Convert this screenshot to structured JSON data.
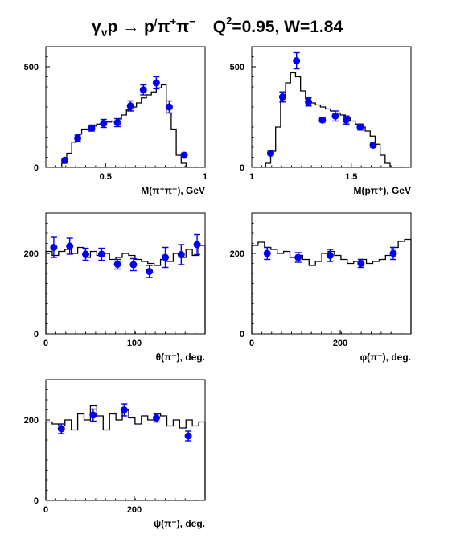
{
  "title": {
    "reaction": "γ",
    "reaction_sub": "v",
    "reaction_rest": "p → p",
    "prime": "/",
    "pi_plus": "π",
    "plus_sup": "+",
    "pi_minus": "π",
    "minus_sup": "−",
    "q2": "Q",
    "q2_sup": "2",
    "q2_rest": "=0.95, W=1.84"
  },
  "colors": {
    "data_points": "#0000ee",
    "histogram": "#000000",
    "frame": "#000000"
  },
  "chart_data": [
    {
      "type": "line",
      "xlabel": "M(π⁺π⁻), GeV",
      "xlim": [
        0.2,
        1.0
      ],
      "ylim": [
        0,
        600
      ],
      "xticks": [
        0.5,
        1
      ],
      "xtick_labels": [
        "0.5",
        "1"
      ],
      "yticks": [
        0,
        500
      ],
      "ytick_labels": [
        "0",
        "500"
      ],
      "series": [
        {
          "kind": "histogram",
          "edges": [
            0.28,
            0.305,
            0.33,
            0.355,
            0.38,
            0.405,
            0.43,
            0.455,
            0.48,
            0.505,
            0.53,
            0.555,
            0.58,
            0.605,
            0.63,
            0.655,
            0.68,
            0.705,
            0.73,
            0.755,
            0.78,
            0.805,
            0.83,
            0.855,
            0.88,
            0.905
          ],
          "values": [
            20,
            70,
            125,
            165,
            190,
            190,
            205,
            215,
            225,
            225,
            230,
            240,
            260,
            285,
            300,
            320,
            345,
            360,
            375,
            395,
            410,
            270,
            190,
            60,
            20
          ]
        },
        {
          "kind": "points",
          "x": [
            0.295,
            0.36,
            0.43,
            0.49,
            0.56,
            0.625,
            0.69,
            0.755,
            0.82,
            0.895
          ],
          "y": [
            35,
            145,
            195,
            218,
            222,
            305,
            385,
            420,
            300,
            60
          ],
          "yerr": [
            10,
            15,
            15,
            20,
            20,
            25,
            25,
            30,
            30,
            10
          ]
        }
      ]
    },
    {
      "type": "line",
      "xlabel": "M(pπ⁺), GeV",
      "xlim": [
        1.0,
        1.8
      ],
      "ylim": [
        0,
        600
      ],
      "xticks": [
        1,
        1.5
      ],
      "xtick_labels": [
        "1",
        "1.5"
      ],
      "yticks": [
        0,
        500
      ],
      "ytick_labels": [
        "0",
        "500"
      ],
      "series": [
        {
          "kind": "histogram",
          "edges": [
            1.07,
            1.095,
            1.12,
            1.145,
            1.17,
            1.195,
            1.22,
            1.245,
            1.27,
            1.295,
            1.32,
            1.345,
            1.37,
            1.395,
            1.42,
            1.445,
            1.47,
            1.495,
            1.52,
            1.545,
            1.57,
            1.595,
            1.62,
            1.645,
            1.67,
            1.695
          ],
          "values": [
            20,
            80,
            200,
            350,
            420,
            470,
            450,
            380,
            340,
            320,
            310,
            300,
            290,
            280,
            270,
            260,
            245,
            230,
            215,
            200,
            180,
            155,
            115,
            60,
            20
          ]
        },
        {
          "kind": "points",
          "x": [
            1.095,
            1.155,
            1.225,
            1.285,
            1.355,
            1.42,
            1.475,
            1.545,
            1.61
          ],
          "y": [
            70,
            350,
            530,
            325,
            235,
            255,
            235,
            200,
            110
          ],
          "yerr": [
            10,
            25,
            40,
            20,
            10,
            25,
            20,
            15,
            10
          ]
        }
      ]
    },
    {
      "type": "line",
      "xlabel": "θ(π⁻), deg.",
      "xlim": [
        0,
        180
      ],
      "ylim": [
        0,
        300
      ],
      "xticks": [
        0,
        100
      ],
      "xtick_labels": [
        "0",
        "100"
      ],
      "yticks": [
        0,
        200
      ],
      "ytick_labels": [
        "0",
        "200"
      ],
      "series": [
        {
          "kind": "histogram",
          "edges": [
            0,
            7.2,
            14.4,
            21.6,
            28.8,
            36,
            43.2,
            50.4,
            57.6,
            64.8,
            72,
            79.2,
            86.4,
            93.6,
            100.8,
            108,
            115.2,
            122.4,
            129.6,
            136.8,
            144,
            151.2,
            158.4,
            165.6,
            172.8,
            180
          ],
          "values": [
            205,
            195,
            205,
            210,
            200,
            215,
            190,
            205,
            195,
            200,
            185,
            190,
            200,
            195,
            185,
            180,
            175,
            170,
            185,
            180,
            200,
            190,
            210,
            195,
            220
          ]
        },
        {
          "kind": "points",
          "x": [
            9,
            27,
            45,
            63,
            81,
            99,
            117,
            135,
            153,
            171
          ],
          "y": [
            215,
            218,
            198,
            198,
            173,
            172,
            155,
            190,
            197,
            222
          ],
          "yerr": [
            25,
            20,
            15,
            15,
            12,
            15,
            15,
            25,
            25,
            25
          ]
        }
      ]
    },
    {
      "type": "line",
      "xlabel": "φ(π⁻), deg.",
      "xlim": [
        0,
        360
      ],
      "ylim": [
        0,
        300
      ],
      "xticks": [
        0,
        200
      ],
      "xtick_labels": [
        "0",
        "200"
      ],
      "yticks": [
        0,
        200
      ],
      "ytick_labels": [
        "0",
        "200"
      ],
      "series": [
        {
          "kind": "histogram",
          "edges": [
            0,
            14.4,
            28.8,
            43.2,
            57.6,
            72,
            86.4,
            100.8,
            115.2,
            129.6,
            144,
            158.4,
            172.8,
            187.2,
            201.6,
            216,
            230.4,
            244.8,
            259.2,
            273.6,
            288,
            302.4,
            316.8,
            331.2,
            345.6,
            360
          ],
          "values": [
            220,
            228,
            215,
            210,
            200,
            205,
            190,
            195,
            185,
            170,
            180,
            200,
            205,
            195,
            185,
            175,
            180,
            185,
            175,
            180,
            185,
            195,
            215,
            230,
            235
          ]
        },
        {
          "kind": "points",
          "x": [
            35,
            105,
            177,
            247,
            320
          ],
          "y": [
            200,
            190,
            195,
            175,
            200
          ],
          "yerr": [
            15,
            12,
            15,
            10,
            15
          ]
        }
      ]
    },
    {
      "type": "line",
      "xlabel": "ψ(π⁻), deg.",
      "xlim": [
        0,
        360
      ],
      "ylim": [
        0,
        300
      ],
      "xticks": [
        0,
        200
      ],
      "xtick_labels": [
        "0",
        "200"
      ],
      "yticks": [
        0,
        200
      ],
      "ytick_labels": [
        "0",
        "200"
      ],
      "series": [
        {
          "kind": "histogram",
          "edges": [
            0,
            14.4,
            28.8,
            43.2,
            57.6,
            72,
            86.4,
            100.8,
            115.2,
            129.6,
            144,
            158.4,
            172.8,
            187.2,
            201.6,
            216,
            230.4,
            244.8,
            259.2,
            273.6,
            288,
            302.4,
            316.8,
            331.2,
            345.6,
            360
          ],
          "values": [
            195,
            190,
            185,
            200,
            175,
            215,
            200,
            235,
            210,
            175,
            215,
            200,
            225,
            205,
            190,
            210,
            200,
            215,
            210,
            185,
            200,
            180,
            200,
            185,
            195
          ]
        },
        {
          "kind": "points",
          "x": [
            35,
            107,
            177,
            250,
            322
          ],
          "y": [
            178,
            212,
            225,
            205,
            160
          ],
          "yerr": [
            12,
            15,
            15,
            10,
            12
          ]
        }
      ]
    }
  ]
}
